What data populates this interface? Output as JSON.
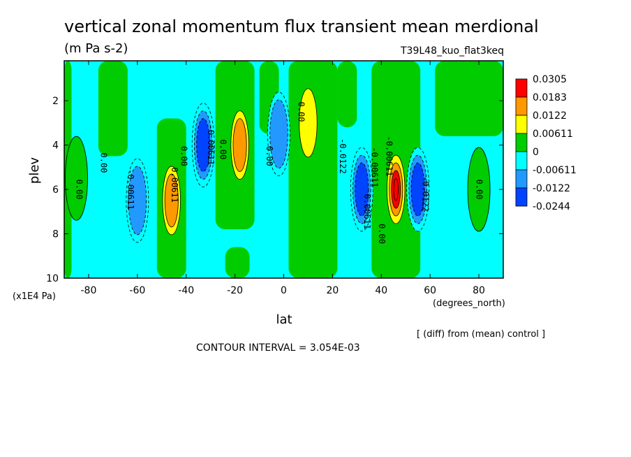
{
  "chart_data": {
    "type": "heatmap",
    "title": "vertical zonal momentum flux transient mean merdional",
    "units": "(m Pa s-2)",
    "run_label": "T39L48_kuo_flat3keq",
    "xlabel": "lat",
    "x_units": "(degrees_north)",
    "ylabel": "plev",
    "y_units": "(x1E4 Pa)",
    "x_ticks": [
      "-80",
      "-60",
      "-40",
      "-20",
      "0",
      "20",
      "40",
      "60",
      "80"
    ],
    "y_ticks": [
      "2",
      "4",
      "6",
      "8",
      "10"
    ],
    "xlim": [
      -90,
      90
    ],
    "ylim": [
      10,
      0.2
    ],
    "contour_interval_label": "CONTOUR INTERVAL = 3.054E-03",
    "diff_note": "[ (diff) from (mean) control ]",
    "colorbar": {
      "labels": [
        "0.0305",
        "0.0183",
        "0.0122",
        "0.00611",
        "0",
        "-0.00611",
        "-0.0122",
        "-0.0244"
      ],
      "colors": [
        "#ff0000",
        "#ff9900",
        "#ffff00",
        "#00cc00",
        "#00ffff",
        "#2299ff",
        "#0044ff"
      ]
    },
    "contour_labels": [
      "0.00",
      "0.00",
      "-0.00611",
      "0.00611",
      "0.00",
      "-0.00611",
      "0.00",
      "0.00",
      "0.00",
      "-0.0122",
      "-0.00611",
      "0.00611",
      "-0.00611",
      "0.00",
      "-0.0122",
      "0.00"
    ],
    "features": [
      {
        "lat": -85,
        "plev": 5.5,
        "level": 0
      },
      {
        "lat": -60,
        "plev": 6.5,
        "level": -1
      },
      {
        "lat": -46,
        "plev": 6.5,
        "level": 2
      },
      {
        "lat": -33,
        "plev": 4.0,
        "level": -2
      },
      {
        "lat": -18,
        "plev": 4.0,
        "level": 2
      },
      {
        "lat": -2,
        "plev": 3.5,
        "level": -1
      },
      {
        "lat": 10,
        "plev": 3.0,
        "level": 1
      },
      {
        "lat": 32,
        "plev": 6.0,
        "level": -2
      },
      {
        "lat": 46,
        "plev": 6.0,
        "level": 4
      },
      {
        "lat": 55,
        "plev": 6.0,
        "level": -2
      },
      {
        "lat": 80,
        "plev": 6.0,
        "level": 0
      }
    ]
  }
}
